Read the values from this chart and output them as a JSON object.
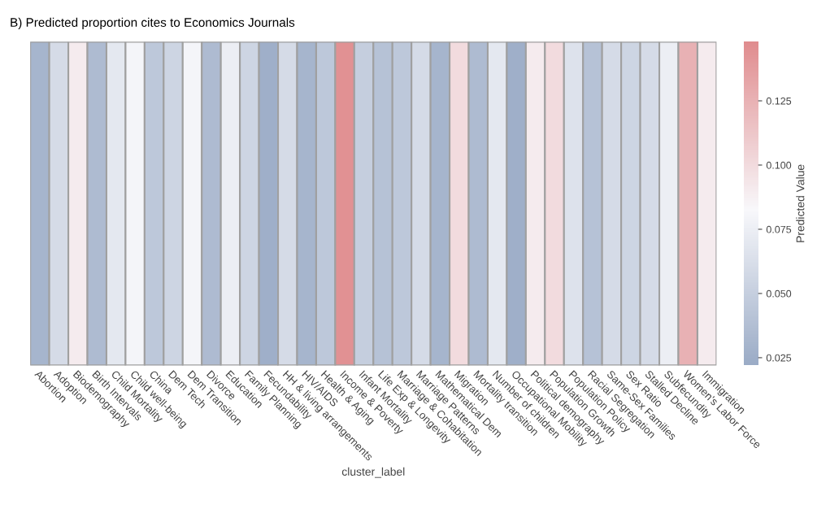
{
  "chart_data": {
    "type": "heatmap",
    "title": "B) Predicted proportion cites to Economics Journals",
    "xlabel": "cluster_label",
    "clabel": "Predicted Value",
    "categories": [
      "Abortion",
      "Adoption",
      "Biodemography",
      "Birth Intervals",
      "Child Mortality",
      "Child well-being",
      "China",
      "Dem Tech",
      "Dem Transition",
      "Divorce",
      "Education",
      "Family Planning",
      "Fecundability",
      "HH & living arrangements",
      "HIV/AIDS",
      "Health & Aging",
      "Income & Poverty",
      "Infant Mortality",
      "Life Exp & Longevity",
      "Marriage & Cohabitation",
      "Marriage Patterns",
      "Mathematical Dem",
      "Migration",
      "Mortality transition",
      "Number of children",
      "Occupational Mobility",
      "Political demography",
      "Population Growth",
      "Population Policy",
      "Racial Segregation",
      "Same-Sex Families",
      "Sex Ratio",
      "Stalled Decline",
      "Subfecundity",
      "Women's Labor Force",
      "Immigration"
    ],
    "y_categories": [
      null
    ],
    "cells": [
      [
        0.03,
        0.06,
        0.09,
        0.035,
        0.07,
        0.08,
        0.045,
        0.055,
        0.08,
        0.035,
        0.075,
        0.055,
        0.025,
        0.06,
        0.03,
        0.045,
        0.145,
        0.05,
        0.04,
        0.045,
        0.06,
        0.03,
        0.1,
        0.035,
        0.07,
        0.025,
        0.09,
        0.1,
        0.065,
        0.04,
        0.06,
        0.055,
        0.06,
        0.075,
        0.125,
        0.09
      ]
    ],
    "clim": [
      0.022,
      0.148
    ],
    "cticks": [
      0.025,
      {
        "value": 0.05,
        "label": "0.050"
      },
      0.075,
      {
        "value": 0.1,
        "label": "0.100"
      },
      0.125
    ],
    "tick_labels": "x"
  }
}
